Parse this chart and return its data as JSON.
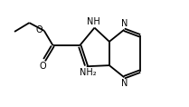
{
  "bg_color": "#ffffff",
  "bond_color": "#000000",
  "text_color": "#000000",
  "line_width": 1.3,
  "font_size": 7.0,
  "fig_width": 2.09,
  "fig_height": 1.18,
  "dpi": 100,
  "xlim": [
    0.0,
    9.5
  ],
  "ylim": [
    0.5,
    5.5
  ]
}
